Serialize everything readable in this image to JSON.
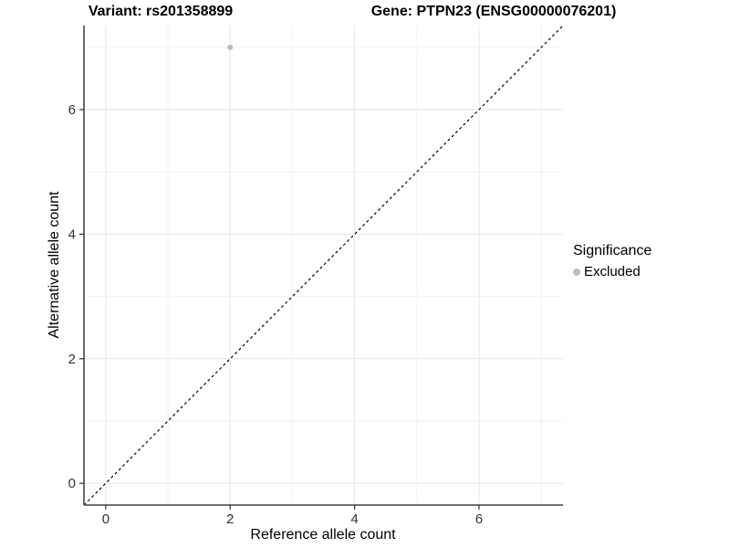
{
  "titles": {
    "variant": "Variant: rs201358899",
    "gene": "Gene: PTPN23 (ENSG00000076201)"
  },
  "axes": {
    "x_label": "Reference allele count",
    "y_label": "Alternative allele count"
  },
  "legend": {
    "title": "Significance",
    "items": [
      {
        "label": "Excluded",
        "color": "#bebebe"
      }
    ]
  },
  "chart_data": {
    "type": "scatter",
    "title_left": "Variant: rs201358899",
    "title_right": "Gene: PTPN23 (ENSG00000076201)",
    "xlabel": "Reference allele count",
    "ylabel": "Alternative allele count",
    "xlim": [
      -0.35,
      7.35
    ],
    "ylim": [
      -0.35,
      7.35
    ],
    "x_ticks": [
      0,
      2,
      4,
      6
    ],
    "y_ticks": [
      0,
      2,
      4,
      6
    ],
    "x_minor_ticks": [
      1,
      3,
      5,
      7
    ],
    "y_minor_ticks": [
      1,
      3,
      5,
      7
    ],
    "grid": true,
    "legend_position": "right",
    "series": [
      {
        "name": "Excluded",
        "color": "#bebebe",
        "points": [
          {
            "x": 2,
            "y": 7
          }
        ]
      }
    ],
    "reference_line": {
      "kind": "abline",
      "slope": 1,
      "intercept": 0,
      "style": "dashed",
      "color": "#000000"
    }
  },
  "style_colors": {
    "grid_major": "#e6e6e6",
    "grid_minor": "#f2f2f2",
    "axis_line": "#595959",
    "tick_mark": "#333333",
    "tick_label": "#333333"
  }
}
